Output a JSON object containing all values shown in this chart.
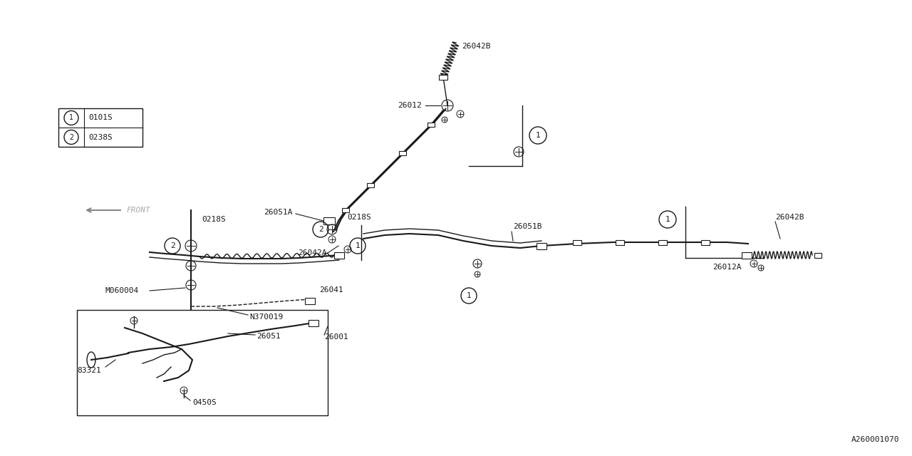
{
  "bg_color": "#ffffff",
  "line_color": "#1a1a1a",
  "diagram_id": "A260001070",
  "legend_items": [
    {
      "symbol": "1",
      "code": "0101S"
    },
    {
      "symbol": "2",
      "code": "0238S"
    }
  ],
  "figsize": [
    12.8,
    6.4
  ],
  "dpi": 100
}
